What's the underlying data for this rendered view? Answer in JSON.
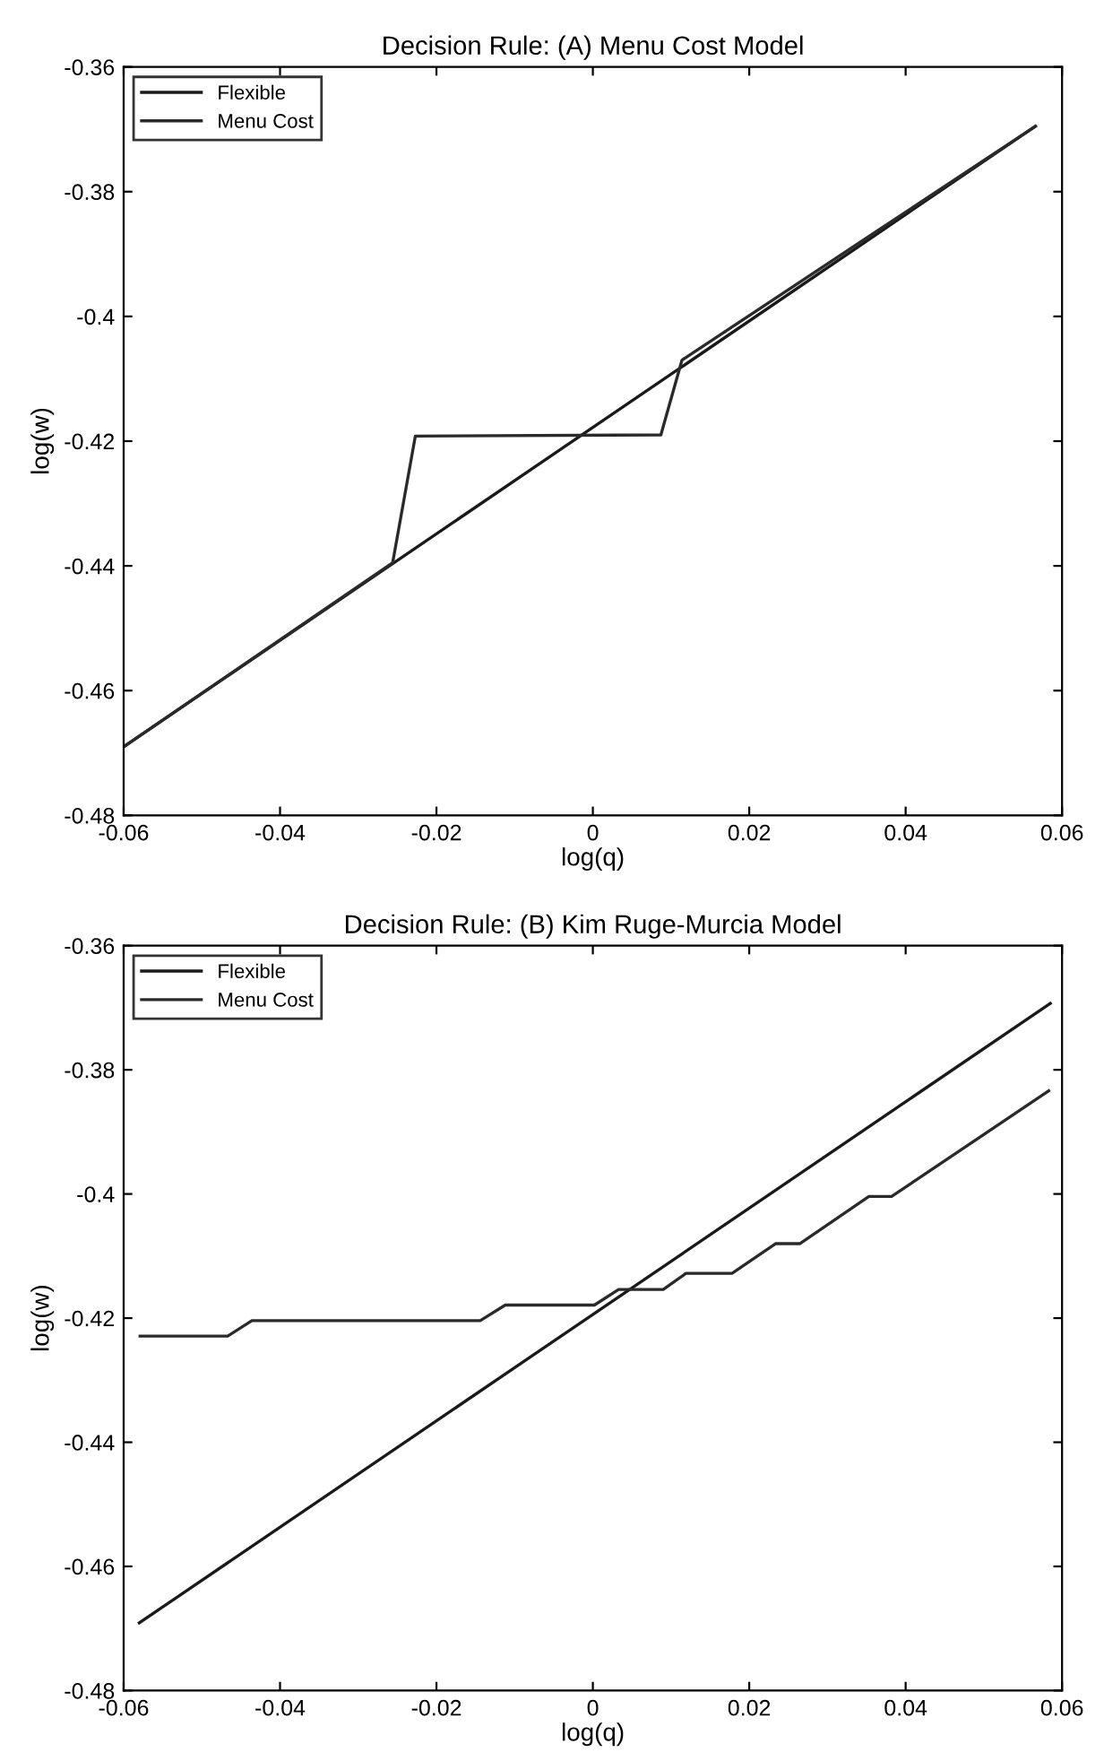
{
  "chart_data": [
    {
      "type": "line",
      "title": "Decision Rule: (A) Menu Cost Model",
      "xlabel": "log(q)",
      "ylabel": "log(w)",
      "xlim": [
        -0.06,
        0.06
      ],
      "ylim": [
        -0.48,
        -0.36
      ],
      "xticks": [
        -0.06,
        -0.04,
        -0.02,
        0,
        0.02,
        0.04,
        0.06
      ],
      "yticks": [
        -0.48,
        -0.46,
        -0.44,
        -0.42,
        -0.4,
        -0.38,
        -0.36
      ],
      "grid": false,
      "legend": "top left",
      "series": [
        {
          "name": "Flexible",
          "color": "#1a1a1a",
          "x": [
            -0.06,
            0.0566
          ],
          "values": [
            -0.469,
            -0.3695
          ]
        },
        {
          "name": "Menu Cost",
          "color": "#2a2a2a",
          "x": [
            -0.06,
            -0.0256,
            -0.0227,
            0.0087,
            0.0114,
            0.0566
          ],
          "values": [
            -0.469,
            -0.4395,
            -0.4192,
            -0.419,
            -0.407,
            -0.3695
          ]
        }
      ]
    },
    {
      "type": "line",
      "title": "Decision Rule: (B) Kim Ruge-Murcia Model",
      "xlabel": "log(q)",
      "ylabel": "log(w)",
      "xlim": [
        -0.06,
        0.06
      ],
      "ylim": [
        -0.48,
        -0.36
      ],
      "xticks": [
        -0.06,
        -0.04,
        -0.02,
        0,
        0.02,
        0.04,
        0.06
      ],
      "yticks": [
        -0.48,
        -0.46,
        -0.44,
        -0.42,
        -0.4,
        -0.38,
        -0.36
      ],
      "grid": false,
      "legend": "top left",
      "series": [
        {
          "name": "Flexible",
          "color": "#1a1a1a",
          "x": [
            -0.058,
            0.0585
          ],
          "values": [
            -0.4691,
            -0.3693
          ]
        },
        {
          "name": "Menu Cost",
          "color": "#2a2a2a",
          "x": [
            -0.0579,
            -0.0467,
            -0.0436,
            -0.0144,
            -0.0112,
            0.0002,
            0.0033,
            0.009,
            0.0119,
            0.0178,
            0.0234,
            0.0265,
            0.0353,
            0.0382,
            0.0583
          ],
          "values": [
            -0.4229,
            -0.4229,
            -0.4204,
            -0.4204,
            -0.4179,
            -0.4179,
            -0.4154,
            -0.4154,
            -0.4128,
            -0.4128,
            -0.408,
            -0.408,
            -0.4004,
            -0.4004,
            -0.3834
          ]
        }
      ]
    }
  ]
}
